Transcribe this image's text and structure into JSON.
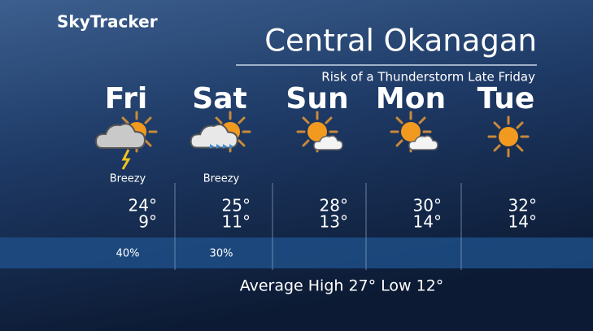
{
  "header": {
    "brand": "SkyTracker",
    "title": "Central Okanagan",
    "subtitle": "Risk of a Thunderstorm Late Friday"
  },
  "days": [
    {
      "name": "Fri",
      "note": "Breezy",
      "high": "24°",
      "low": "9°",
      "pop": "40%"
    },
    {
      "name": "Sat",
      "note": "Breezy",
      "high": "25°",
      "low": "11°",
      "pop": "30%"
    },
    {
      "name": "Sun",
      "high": "28°",
      "low": "13°"
    },
    {
      "name": "Mon",
      "high": "30°",
      "low": "14°"
    },
    {
      "name": "Tue",
      "high": "32°",
      "low": "14°"
    }
  ],
  "footer": "Average High 27° Low 12°"
}
